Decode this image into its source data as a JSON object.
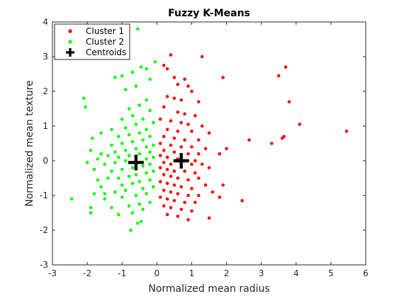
{
  "chart_data": {
    "type": "scatter",
    "title": "Fuzzy K-Means",
    "xlabel": "Normalized mean radius",
    "ylabel": "Normalized mean texture",
    "xlim": [
      -3,
      6
    ],
    "ylim": [
      -3,
      4
    ],
    "xticks": [
      "-3",
      "-2",
      "-1",
      "0",
      "1",
      "2",
      "3",
      "4",
      "5",
      "6"
    ],
    "yticks": [
      "-3",
      "-2",
      "-1",
      "0",
      "1",
      "2",
      "3",
      "4"
    ],
    "grid": false,
    "legend_placement": "top-left",
    "legend": [
      "Cluster 1",
      "Cluster 2",
      "Centroids"
    ],
    "colors": {
      "cluster1": "#ff0000",
      "cluster2": "#00ff00",
      "centroids": "#000000"
    },
    "series": [
      {
        "name": "Cluster 1",
        "marker": "dot",
        "color": "#ff0000",
        "points": [
          [
            0.4,
            3.05
          ],
          [
            1.3,
            3.0
          ],
          [
            0.2,
            2.75
          ],
          [
            0.3,
            2.65
          ],
          [
            0.5,
            2.4
          ],
          [
            0.6,
            2.2
          ],
          [
            0.8,
            2.35
          ],
          [
            0.9,
            2.15
          ],
          [
            1.9,
            2.4
          ],
          [
            1.0,
            2.0
          ],
          [
            0.3,
            1.85
          ],
          [
            0.5,
            1.8
          ],
          [
            0.7,
            1.75
          ],
          [
            1.2,
            1.7
          ],
          [
            0.2,
            1.55
          ],
          [
            0.6,
            1.4
          ],
          [
            0.8,
            1.35
          ],
          [
            1.1,
            1.3
          ],
          [
            0.1,
            1.2
          ],
          [
            0.4,
            1.15
          ],
          [
            0.7,
            1.1
          ],
          [
            0.9,
            1.05
          ],
          [
            1.3,
            1.0
          ],
          [
            0.3,
            0.9
          ],
          [
            0.6,
            0.85
          ],
          [
            1.0,
            0.85
          ],
          [
            1.5,
            0.8
          ],
          [
            0.2,
            0.7
          ],
          [
            0.5,
            0.65
          ],
          [
            0.8,
            0.6
          ],
          [
            1.2,
            0.6
          ],
          [
            0.1,
            0.5
          ],
          [
            0.4,
            0.45
          ],
          [
            0.7,
            0.4
          ],
          [
            1.0,
            0.4
          ],
          [
            1.4,
            0.35
          ],
          [
            0.2,
            0.3
          ],
          [
            0.5,
            0.25
          ],
          [
            0.9,
            0.2
          ],
          [
            1.2,
            0.2
          ],
          [
            0.1,
            0.15
          ],
          [
            0.3,
            0.1
          ],
          [
            0.6,
            0.05
          ],
          [
            0.8,
            0.0
          ],
          [
            1.1,
            0.0
          ],
          [
            0.2,
            -0.05
          ],
          [
            0.4,
            -0.1
          ],
          [
            0.7,
            -0.15
          ],
          [
            1.0,
            -0.1
          ],
          [
            1.3,
            -0.1
          ],
          [
            0.1,
            -0.2
          ],
          [
            0.3,
            -0.25
          ],
          [
            0.5,
            -0.3
          ],
          [
            0.8,
            -0.3
          ],
          [
            1.1,
            -0.35
          ],
          [
            1.5,
            -0.2
          ],
          [
            0.2,
            -0.4
          ],
          [
            0.4,
            -0.45
          ],
          [
            0.6,
            -0.5
          ],
          [
            0.9,
            -0.55
          ],
          [
            1.2,
            -0.5
          ],
          [
            0.1,
            -0.6
          ],
          [
            0.3,
            -0.65
          ],
          [
            0.5,
            -0.7
          ],
          [
            0.7,
            -0.75
          ],
          [
            1.0,
            -0.8
          ],
          [
            1.4,
            -0.7
          ],
          [
            0.2,
            -0.85
          ],
          [
            0.4,
            -0.9
          ],
          [
            0.6,
            -0.95
          ],
          [
            0.9,
            -1.0
          ],
          [
            1.2,
            -1.0
          ],
          [
            1.6,
            -0.9
          ],
          [
            0.1,
            -1.05
          ],
          [
            0.3,
            -1.1
          ],
          [
            0.5,
            -1.15
          ],
          [
            0.8,
            -1.2
          ],
          [
            1.1,
            -1.2
          ],
          [
            0.2,
            -1.3
          ],
          [
            0.4,
            -1.35
          ],
          [
            0.7,
            -1.4
          ],
          [
            1.0,
            -1.45
          ],
          [
            0.3,
            -1.55
          ],
          [
            0.6,
            -1.6
          ],
          [
            0.9,
            -1.7
          ],
          [
            1.5,
            -1.65
          ],
          [
            1.8,
            -1.05
          ],
          [
            1.9,
            -0.7
          ],
          [
            2.0,
            0.35
          ],
          [
            1.8,
            0.2
          ],
          [
            2.65,
            0.6
          ],
          [
            3.3,
            0.5
          ],
          [
            3.6,
            0.65
          ],
          [
            3.65,
            0.7
          ],
          [
            4.1,
            1.05
          ],
          [
            5.45,
            0.85
          ],
          [
            3.8,
            1.7
          ],
          [
            3.5,
            2.45
          ],
          [
            3.7,
            2.7
          ],
          [
            2.45,
            -1.15
          ]
        ]
      },
      {
        "name": "Cluster 2",
        "marker": "dot",
        "color": "#00ff00",
        "points": [
          [
            -0.55,
            3.8
          ],
          [
            -0.05,
            2.85
          ],
          [
            -0.45,
            2.7
          ],
          [
            -0.3,
            2.65
          ],
          [
            -0.7,
            2.55
          ],
          [
            -1.2,
            2.4
          ],
          [
            -1.0,
            2.45
          ],
          [
            -0.2,
            2.35
          ],
          [
            -0.6,
            2.15
          ],
          [
            -0.9,
            2.05
          ],
          [
            -2.1,
            1.8
          ],
          [
            -2.05,
            1.55
          ],
          [
            -0.3,
            1.75
          ],
          [
            -0.5,
            1.6
          ],
          [
            -0.8,
            1.5
          ],
          [
            -0.2,
            1.45
          ],
          [
            -0.7,
            1.3
          ],
          [
            -1.0,
            1.2
          ],
          [
            -0.4,
            1.2
          ],
          [
            -0.1,
            1.1
          ],
          [
            -0.6,
            1.05
          ],
          [
            -0.9,
            0.95
          ],
          [
            -1.3,
            0.9
          ],
          [
            -1.6,
            0.8
          ],
          [
            -1.85,
            0.65
          ],
          [
            -0.3,
            0.9
          ],
          [
            -0.5,
            0.8
          ],
          [
            -0.8,
            0.75
          ],
          [
            -1.1,
            0.7
          ],
          [
            -0.2,
            0.7
          ],
          [
            -0.4,
            0.6
          ],
          [
            -0.7,
            0.55
          ],
          [
            -1.0,
            0.5
          ],
          [
            -1.3,
            0.45
          ],
          [
            -1.9,
            0.3
          ],
          [
            -0.1,
            0.45
          ],
          [
            -0.3,
            0.4
          ],
          [
            -0.6,
            0.35
          ],
          [
            -0.9,
            0.3
          ],
          [
            -1.2,
            0.25
          ],
          [
            -1.6,
            0.2
          ],
          [
            -0.2,
            0.25
          ],
          [
            -0.5,
            0.2
          ],
          [
            -0.8,
            0.15
          ],
          [
            -1.1,
            0.1
          ],
          [
            -1.4,
            0.15
          ],
          [
            -1.7,
            0.05
          ],
          [
            -0.1,
            0.1
          ],
          [
            -0.3,
            0.05
          ],
          [
            -0.6,
            0.0
          ],
          [
            -0.9,
            0.0
          ],
          [
            -1.2,
            -0.05
          ],
          [
            -1.5,
            -0.1
          ],
          [
            -2.0,
            -0.05
          ],
          [
            -0.2,
            -0.1
          ],
          [
            -0.4,
            -0.15
          ],
          [
            -0.7,
            -0.2
          ],
          [
            -1.0,
            -0.25
          ],
          [
            -1.3,
            -0.3
          ],
          [
            -1.8,
            -0.25
          ],
          [
            -0.1,
            -0.3
          ],
          [
            -0.3,
            -0.35
          ],
          [
            -0.6,
            -0.4
          ],
          [
            -0.8,
            -0.45
          ],
          [
            -1.1,
            -0.5
          ],
          [
            -1.4,
            -0.5
          ],
          [
            -1.7,
            -0.55
          ],
          [
            -0.2,
            -0.55
          ],
          [
            -0.5,
            -0.6
          ],
          [
            -0.7,
            -0.65
          ],
          [
            -1.0,
            -0.7
          ],
          [
            -1.6,
            -0.75
          ],
          [
            -0.1,
            -0.75
          ],
          [
            -0.4,
            -0.8
          ],
          [
            -0.9,
            -0.85
          ],
          [
            -1.2,
            -0.9
          ],
          [
            -1.8,
            -0.95
          ],
          [
            -0.3,
            -0.95
          ],
          [
            -0.6,
            -1.0
          ],
          [
            -1.0,
            -1.05
          ],
          [
            -1.5,
            -1.1
          ],
          [
            -0.2,
            -1.2
          ],
          [
            -0.5,
            -1.25
          ],
          [
            -0.8,
            -1.3
          ],
          [
            -1.3,
            -1.35
          ],
          [
            -1.9,
            -1.35
          ],
          [
            -0.4,
            -1.4
          ],
          [
            -0.7,
            -1.5
          ],
          [
            -1.1,
            -1.55
          ],
          [
            -1.9,
            -1.5
          ],
          [
            -0.45,
            -1.75
          ],
          [
            -0.55,
            -1.8
          ],
          [
            -0.75,
            -2.0
          ],
          [
            -2.45,
            -1.1
          ],
          [
            -1.5,
            -0.95
          ]
        ]
      },
      {
        "name": "Centroids",
        "marker": "plus",
        "color": "#000000",
        "points": [
          [
            -0.6,
            -0.05
          ],
          [
            0.7,
            0.0
          ]
        ]
      }
    ]
  }
}
